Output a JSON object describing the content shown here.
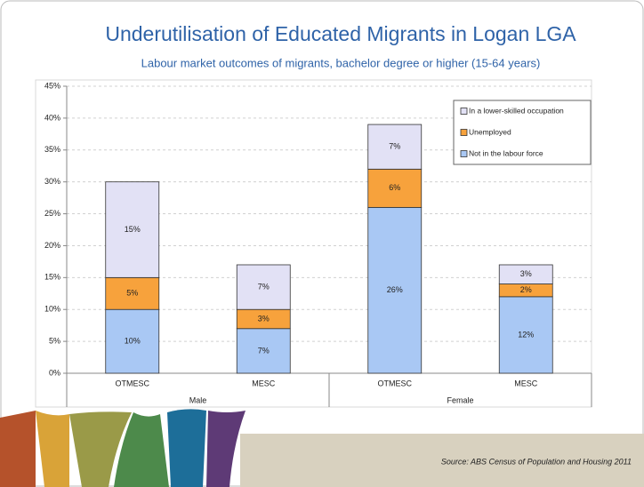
{
  "chart_data": {
    "type": "stacked-bar",
    "title": "Underutilisation of Educated Migrants in Logan LGA",
    "subtitle": "Labour market outcomes of migrants, bachelor degree or higher (15-64 years)",
    "categories": [
      "OTMESC",
      "MESC",
      "OTMESC",
      "MESC"
    ],
    "groups": [
      "Male",
      "Female"
    ],
    "series": [
      {
        "name": "Not in the labour force",
        "color": "#a9c8f4",
        "values": [
          10,
          7,
          26,
          12
        ],
        "value_labels": [
          "10%",
          "7%",
          "26%",
          "12%"
        ]
      },
      {
        "name": "Unemployed",
        "color": "#f7a23c",
        "values": [
          5,
          3,
          6,
          2
        ],
        "value_labels": [
          "5%",
          "3%",
          "6%",
          "2%"
        ]
      },
      {
        "name": "In a lower-skilled occupation",
        "color": "#e2e1f5",
        "values": [
          15,
          7,
          7,
          3
        ],
        "value_labels": [
          "15%",
          "7%",
          "7%",
          "3%"
        ]
      }
    ],
    "ylim": [
      0,
      45
    ],
    "yticks": [
      {
        "value": 0,
        "label": "0%"
      },
      {
        "value": 5,
        "label": "5%"
      },
      {
        "value": 10,
        "label": "10%"
      },
      {
        "value": 15,
        "label": "15%"
      },
      {
        "value": 20,
        "label": "20%"
      },
      {
        "value": 25,
        "label": "25%"
      },
      {
        "value": 30,
        "label": "30%"
      },
      {
        "value": 35,
        "label": "35%"
      },
      {
        "value": 40,
        "label": "40%"
      },
      {
        "value": 45,
        "label": "45%"
      }
    ],
    "grid": true,
    "legend": "top-right"
  },
  "footer": {
    "source": "Source:  ABS Census of Population and Housing 2011"
  }
}
